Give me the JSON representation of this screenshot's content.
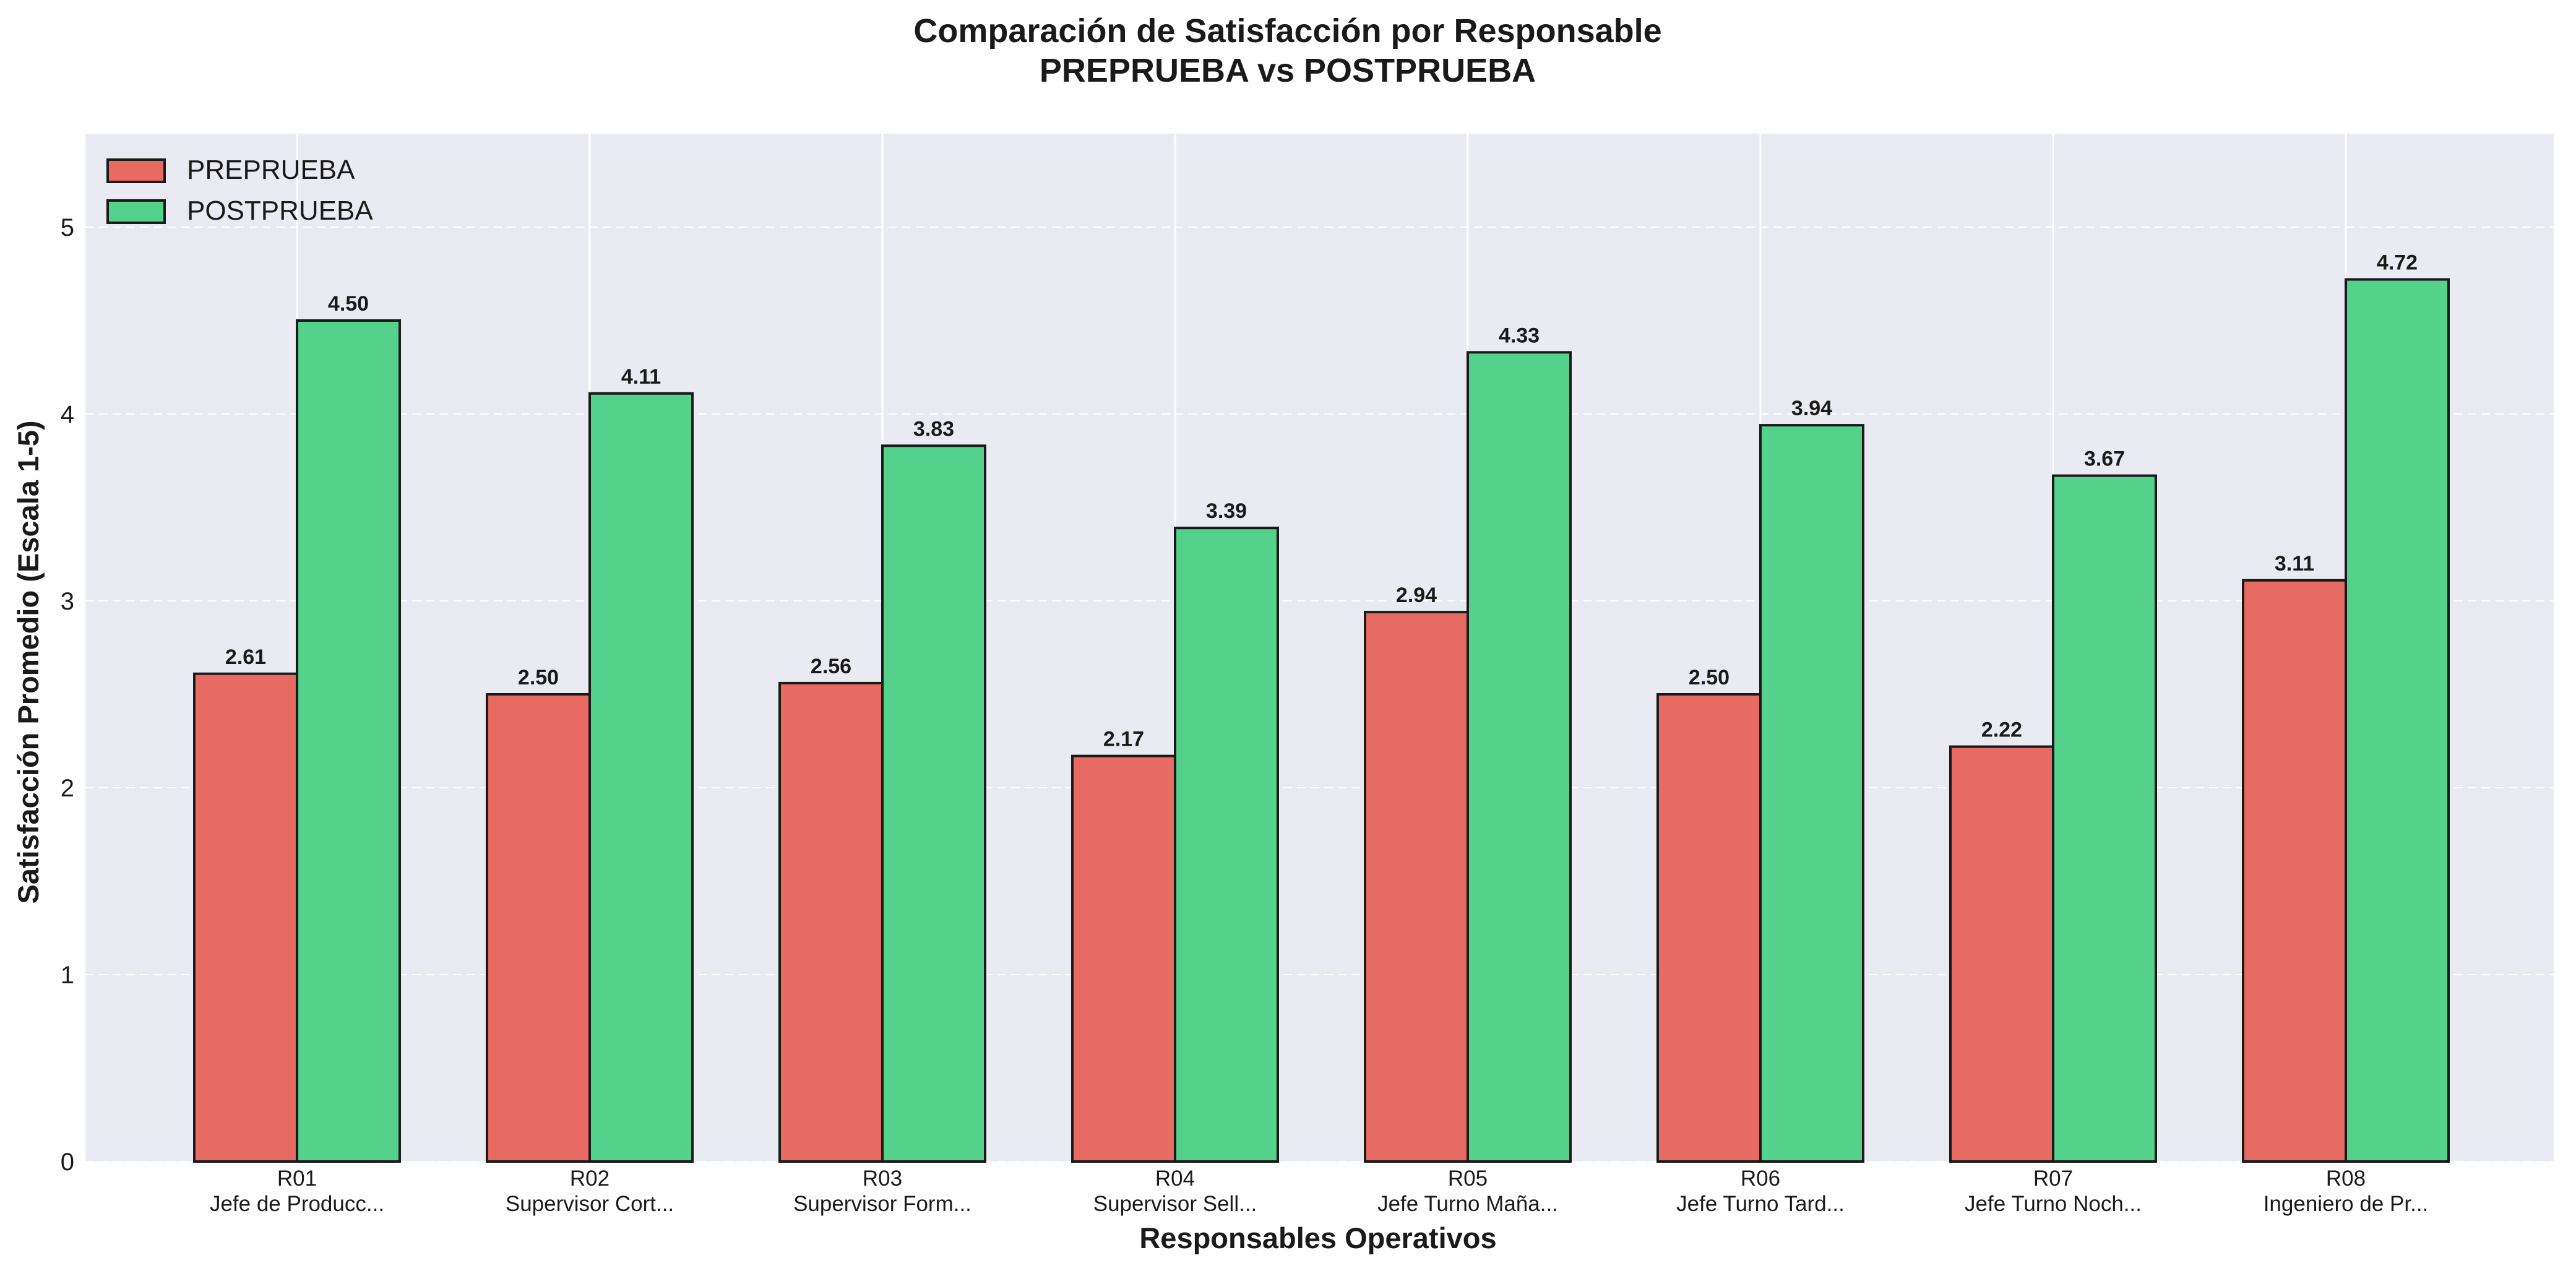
{
  "chart_data": {
    "type": "bar",
    "title": "Comparación de Satisfacción por Responsable",
    "subtitle": "PREPRUEBA vs POSTPRUEBA",
    "xlabel": "Responsables Operativos",
    "ylabel": "Satisfacción Promedio (Escala 1-5)",
    "ylim": [
      0,
      5.5
    ],
    "yticks": [
      0,
      1,
      2,
      3,
      4,
      5
    ],
    "grid": true,
    "legend_position": "top-left",
    "categories": [
      "R01",
      "R02",
      "R03",
      "R04",
      "R05",
      "R06",
      "R07",
      "R08"
    ],
    "category_sublabels": [
      "Jefe de Producc...",
      "Supervisor Cort...",
      "Supervisor Form...",
      "Supervisor Sell...",
      "Jefe Turno Maña...",
      "Jefe Turno Tard...",
      "Jefe Turno Noch...",
      "Ingeniero de Pr..."
    ],
    "series": [
      {
        "name": "PREPRUEBA",
        "color": "#e76b62",
        "values": [
          2.61,
          2.5,
          2.56,
          2.17,
          2.94,
          2.5,
          2.22,
          3.11
        ],
        "value_labels": [
          "2.61",
          "2.50",
          "2.56",
          "2.17",
          "2.94",
          "2.50",
          "2.22",
          "3.11"
        ]
      },
      {
        "name": "POSTPRUEBA",
        "color": "#54d18b",
        "values": [
          4.5,
          4.11,
          3.83,
          3.39,
          4.33,
          3.94,
          3.67,
          4.72
        ],
        "value_labels": [
          "4.50",
          "4.11",
          "3.83",
          "3.39",
          "4.33",
          "3.94",
          "3.67",
          "4.72"
        ]
      }
    ],
    "colors": {
      "plot_background": "#eaeaf2",
      "grid": "#ffffff",
      "bar_edge": "#1a1a1a",
      "text": "#1a1a1a"
    }
  }
}
